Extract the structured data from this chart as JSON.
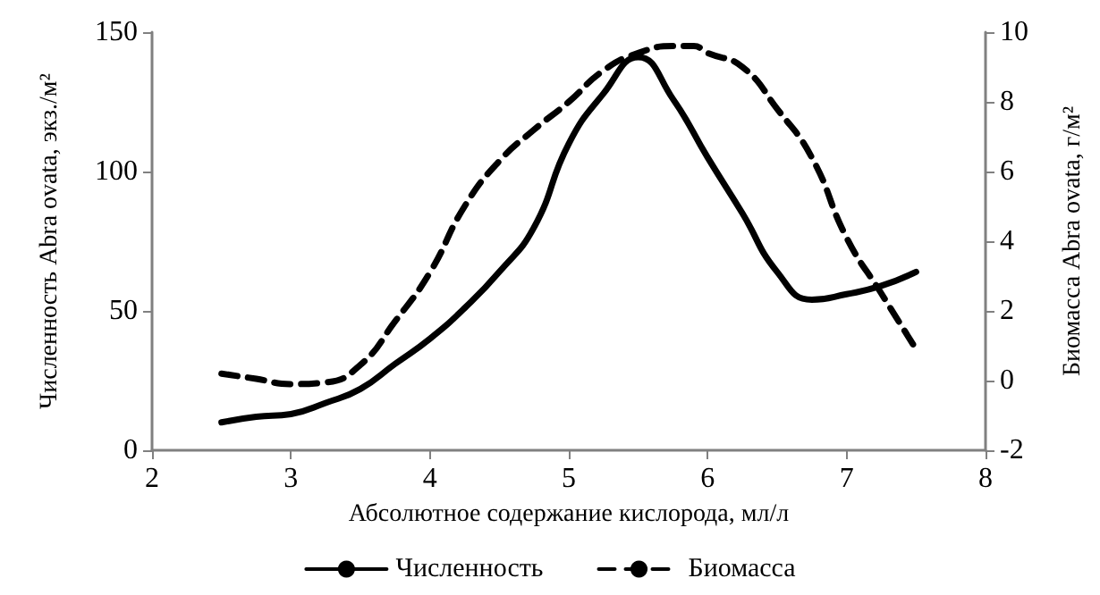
{
  "chart_data": {
    "type": "line",
    "xlabel": "Абсолютное содержание кислорода, мл/л",
    "ylabel": "Численность Abra ovata, экз./м²",
    "y2label": "Биомасса Abra ovata, г/м²",
    "xlim": [
      2,
      8
    ],
    "xticks": [
      2,
      3,
      4,
      5,
      6,
      7,
      8
    ],
    "ylim": [
      0,
      150
    ],
    "yticks": [
      0,
      50,
      100,
      150
    ],
    "y2lim": [
      -2,
      10
    ],
    "y2ticks": [
      -2,
      0,
      2,
      4,
      6,
      8,
      10
    ],
    "grid": false,
    "legend": "bottom",
    "marker": "none",
    "x": [
      2.5,
      2.75,
      3,
      3.25,
      3.5,
      3.75,
      4,
      4.25,
      4.5,
      4.75,
      5,
      5.25,
      5.5,
      5.75,
      6,
      6.25,
      6.5,
      6.75,
      7,
      7.25,
      7.5
    ],
    "series": [
      {
        "name": "Численность",
        "color": "#000000",
        "line_style": "solid",
        "values": [
          10,
          12,
          13,
          17,
          22,
          31,
          40,
          51,
          64,
          80,
          110,
          128,
          141,
          126,
          105,
          85,
          64,
          54,
          56,
          59,
          64
        ]
      },
      {
        "name": "Биомасса",
        "color": "#000000",
        "line_style": "dashed",
        "axis": "y2",
        "x": [
          2.5,
          2.75,
          3,
          3.25,
          3.5,
          3.75,
          4,
          4.25,
          4.5,
          4.75,
          5,
          5.25,
          5.5,
          5.75,
          5.9,
          6,
          6.25,
          6.5,
          6.75,
          7,
          7.25,
          7.5
        ],
        "values": [
          0.2,
          0.05,
          -0.1,
          -0.05,
          0.45,
          1.7,
          3.1,
          5,
          6.3,
          7.2,
          8,
          8.9,
          9.4,
          9.6,
          9.6,
          9.4,
          9,
          7.8,
          6.4,
          4.1,
          2.5,
          0.9
        ]
      }
    ]
  }
}
